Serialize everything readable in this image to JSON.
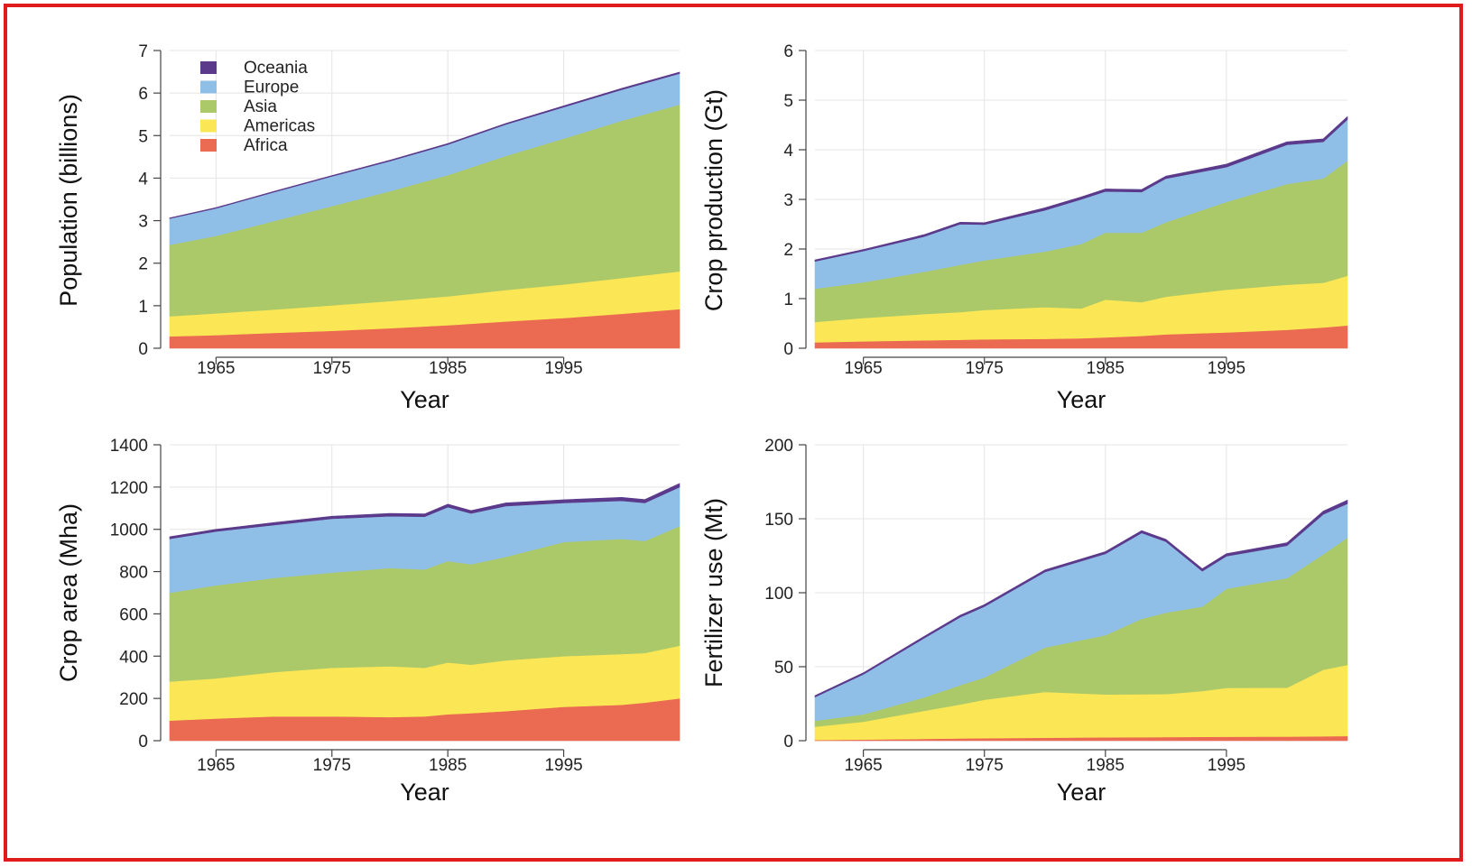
{
  "colors": {
    "Oceania": "#5b3a8c",
    "Europe": "#8fbfe6",
    "Asia": "#acc969",
    "Americas": "#fbe655",
    "Africa": "#ea6a52",
    "grid": "#e4e4e4",
    "frame": "#e01b1b"
  },
  "legend": {
    "position": "top-left",
    "order": [
      "Oceania",
      "Europe",
      "Asia",
      "Americas",
      "Africa"
    ]
  },
  "chart_data": [
    {
      "type": "area",
      "stacked": true,
      "xlabel": "Year",
      "ylabel": "Population (billions)",
      "xlim": [
        1961,
        2005
      ],
      "ylim": [
        0,
        7
      ],
      "xticks": [
        1965,
        1975,
        1985,
        1995
      ],
      "yticks": [
        0,
        1,
        2,
        3,
        4,
        5,
        6,
        7
      ],
      "grid": true,
      "show_legend": true,
      "x": [
        1961,
        1965,
        1970,
        1975,
        1980,
        1985,
        1990,
        1995,
        2000,
        2005
      ],
      "series": [
        {
          "name": "Africa",
          "values": [
            0.28,
            0.31,
            0.36,
            0.41,
            0.47,
            0.54,
            0.63,
            0.71,
            0.81,
            0.92
          ]
        },
        {
          "name": "Americas",
          "values": [
            0.47,
            0.51,
            0.55,
            0.6,
            0.64,
            0.68,
            0.74,
            0.79,
            0.84,
            0.89
          ]
        },
        {
          "name": "Asia",
          "values": [
            1.68,
            1.82,
            2.08,
            2.33,
            2.58,
            2.85,
            3.15,
            3.43,
            3.7,
            3.92
          ]
        },
        {
          "name": "Europe",
          "values": [
            0.62,
            0.65,
            0.68,
            0.7,
            0.71,
            0.72,
            0.74,
            0.74,
            0.73,
            0.73
          ]
        },
        {
          "name": "Oceania",
          "values": [
            0.016,
            0.018,
            0.019,
            0.021,
            0.023,
            0.025,
            0.027,
            0.029,
            0.031,
            0.033
          ]
        }
      ]
    },
    {
      "type": "area",
      "stacked": true,
      "xlabel": "Year",
      "ylabel": "Crop production (Gt)",
      "xlim": [
        1961,
        2005
      ],
      "ylim": [
        0,
        6
      ],
      "xticks": [
        1965,
        1975,
        1985,
        1995
      ],
      "yticks": [
        0,
        1,
        2,
        3,
        4,
        5,
        6
      ],
      "grid": true,
      "show_legend": false,
      "x": [
        1961,
        1965,
        1970,
        1973,
        1975,
        1980,
        1983,
        1985,
        1988,
        1990,
        1995,
        2000,
        2003,
        2005
      ],
      "series": [
        {
          "name": "Africa",
          "values": [
            0.12,
            0.14,
            0.16,
            0.17,
            0.18,
            0.19,
            0.2,
            0.22,
            0.25,
            0.28,
            0.32,
            0.37,
            0.42,
            0.46
          ]
        },
        {
          "name": "Americas",
          "values": [
            0.41,
            0.47,
            0.53,
            0.56,
            0.59,
            0.64,
            0.6,
            0.76,
            0.68,
            0.76,
            0.86,
            0.91,
            0.9,
            1.0
          ]
        },
        {
          "name": "Asia",
          "values": [
            0.67,
            0.72,
            0.85,
            0.95,
            1.0,
            1.12,
            1.3,
            1.35,
            1.4,
            1.5,
            1.77,
            2.03,
            2.1,
            2.32
          ]
        },
        {
          "name": "Europe",
          "values": [
            0.55,
            0.63,
            0.71,
            0.82,
            0.72,
            0.83,
            0.9,
            0.83,
            0.82,
            0.88,
            0.7,
            0.79,
            0.74,
            0.83
          ]
        },
        {
          "name": "Oceania",
          "values": [
            0.03,
            0.03,
            0.04,
            0.04,
            0.04,
            0.05,
            0.05,
            0.05,
            0.05,
            0.05,
            0.06,
            0.06,
            0.06,
            0.06
          ]
        }
      ]
    },
    {
      "type": "area",
      "stacked": true,
      "xlabel": "Year",
      "ylabel": "Crop area (Mha)",
      "xlim": [
        1961,
        2005
      ],
      "ylim": [
        0,
        1400
      ],
      "xticks": [
        1965,
        1975,
        1985,
        1995
      ],
      "yticks": [
        0,
        200,
        400,
        600,
        800,
        1000,
        1200,
        1400
      ],
      "grid": true,
      "show_legend": false,
      "x": [
        1961,
        1965,
        1970,
        1975,
        1980,
        1983,
        1985,
        1987,
        1990,
        1995,
        2000,
        2002,
        2005
      ],
      "series": [
        {
          "name": "Africa",
          "values": [
            95,
            105,
            115,
            115,
            112,
            115,
            125,
            130,
            140,
            160,
            170,
            180,
            200
          ]
        },
        {
          "name": "Americas",
          "values": [
            185,
            190,
            210,
            230,
            240,
            230,
            245,
            230,
            240,
            240,
            240,
            235,
            250
          ]
        },
        {
          "name": "Asia",
          "values": [
            420,
            440,
            445,
            450,
            465,
            465,
            480,
            475,
            490,
            540,
            545,
            530,
            565
          ]
        },
        {
          "name": "Europe",
          "values": [
            255,
            255,
            250,
            255,
            245,
            250,
            255,
            240,
            240,
            185,
            180,
            180,
            185
          ]
        },
        {
          "name": "Oceania",
          "values": [
            10,
            10,
            12,
            12,
            13,
            13,
            14,
            14,
            15,
            15,
            16,
            16,
            17
          ]
        }
      ]
    },
    {
      "type": "area",
      "stacked": true,
      "xlabel": "Year",
      "ylabel": "Fertilizer use (Mt)",
      "xlim": [
        1961,
        2005
      ],
      "ylim": [
        0,
        200
      ],
      "xticks": [
        1965,
        1975,
        1985,
        1995
      ],
      "yticks": [
        0,
        50,
        100,
        150,
        200
      ],
      "grid": true,
      "show_legend": false,
      "x": [
        1961,
        1965,
        1970,
        1973,
        1975,
        1980,
        1985,
        1988,
        1990,
        1993,
        1995,
        2000,
        2003,
        2005
      ],
      "series": [
        {
          "name": "Africa",
          "values": [
            0.5,
            0.8,
            1.2,
            1.5,
            1.7,
            2.0,
            2.3,
            2.4,
            2.5,
            2.6,
            2.7,
            2.8,
            3.0,
            3.2
          ]
        },
        {
          "name": "Americas",
          "values": [
            9,
            12,
            19,
            23,
            26,
            31,
            29,
            29,
            29,
            31,
            33,
            33,
            45,
            48
          ]
        },
        {
          "name": "Asia",
          "values": [
            4,
            5,
            9,
            13,
            15,
            30,
            40,
            51,
            55,
            57,
            67,
            74,
            78,
            86
          ]
        },
        {
          "name": "Europe",
          "values": [
            16,
            27,
            40,
            46,
            48,
            51,
            55,
            58,
            48,
            24,
            22,
            22,
            27,
            23
          ]
        },
        {
          "name": "Oceania",
          "values": [
            1.0,
            1.1,
            1.2,
            1.3,
            1.3,
            1.4,
            1.5,
            1.6,
            1.6,
            1.6,
            1.7,
            2.0,
            2.2,
            2.4
          ]
        }
      ]
    }
  ]
}
